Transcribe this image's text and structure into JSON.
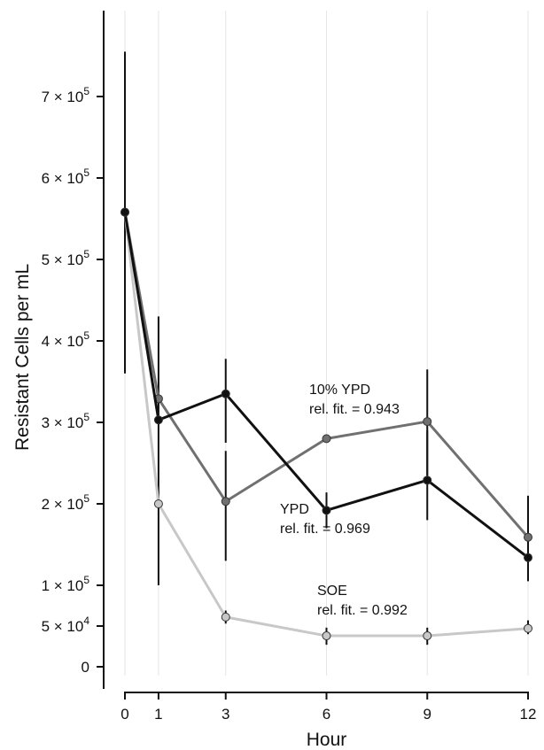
{
  "chart_data": {
    "type": "line",
    "xlabel": "Hour",
    "ylabel": "Resistant Cells per mL",
    "x": [
      0,
      1,
      3,
      6,
      9,
      12
    ],
    "xlim": [
      0,
      12
    ],
    "ylim": [
      0,
      800000
    ],
    "grid": "vertical",
    "x_ticks": [
      "0",
      "1",
      "3",
      "6",
      "9",
      "12"
    ],
    "y_ticks": [
      {
        "value": 0,
        "mantissa": "0",
        "exp": ""
      },
      {
        "value": 50000,
        "mantissa": "5 × 10",
        "exp": "4"
      },
      {
        "value": 100000,
        "mantissa": "1 × 10",
        "exp": "5"
      },
      {
        "value": 200000,
        "mantissa": "2 × 10",
        "exp": "5"
      },
      {
        "value": 300000,
        "mantissa": "3 × 10",
        "exp": "5"
      },
      {
        "value": 400000,
        "mantissa": "4 × 10",
        "exp": "5"
      },
      {
        "value": 500000,
        "mantissa": "5 × 10",
        "exp": "5"
      },
      {
        "value": 600000,
        "mantissa": "6 × 10",
        "exp": "5"
      },
      {
        "value": 700000,
        "mantissa": "7 × 10",
        "exp": "5"
      }
    ],
    "series": [
      {
        "name": "YPD",
        "color": "#111111",
        "values": [
          558000,
          303000,
          335000,
          192000,
          229000,
          134000
        ],
        "err_low": [
          360000,
          100000,
          275000,
          170000,
          180000,
          105000
        ],
        "err_high": [
          755000,
          430000,
          378000,
          214000,
          290000,
          155000
        ]
      },
      {
        "name": "10% YPD",
        "color": "#707070",
        "values": [
          558000,
          329000,
          203000,
          280000,
          301000,
          159000
        ],
        "err_low": [
          558000,
          329000,
          130000,
          280000,
          235000,
          159000
        ],
        "err_high": [
          558000,
          329000,
          265000,
          280000,
          365000,
          210000
        ]
      },
      {
        "name": "SOE",
        "color": "#c8c8c8",
        "values": [
          558000,
          200000,
          61000,
          38000,
          38000,
          47000
        ],
        "err_low": [
          558000,
          200000,
          53000,
          27000,
          27000,
          40000
        ],
        "err_high": [
          558000,
          200000,
          69000,
          48000,
          48000,
          57000
        ]
      }
    ],
    "annotations": [
      {
        "series": "10% YPD",
        "line1": "10% YPD",
        "line2": "rel. fit. = 0.943"
      },
      {
        "series": "YPD",
        "line1": "YPD",
        "line2": "rel. fit. = 0.969"
      },
      {
        "series": "SOE",
        "line1": "SOE",
        "line2": "rel. fit. = 0.992"
      }
    ]
  }
}
